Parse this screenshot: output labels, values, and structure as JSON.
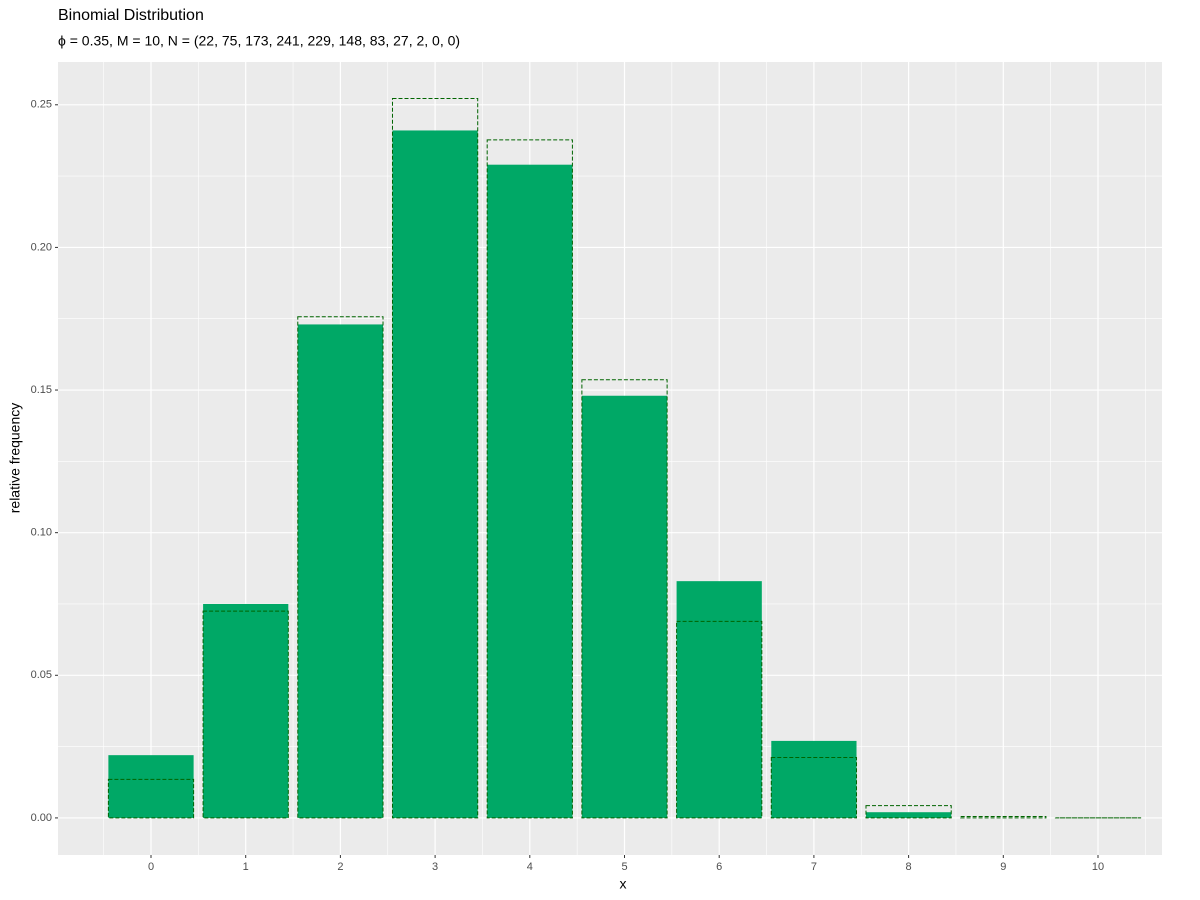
{
  "chart_data": {
    "type": "bar",
    "title": "Binomial Distribution",
    "subtitle": "ϕ = 0.35, M = 10, N = (22, 75, 173, 241, 229, 148, 83, 27, 2, 0, 0)",
    "x_label": "x",
    "y_label": "relative frequency",
    "categories": [
      "0",
      "1",
      "2",
      "3",
      "4",
      "5",
      "6",
      "7",
      "8",
      "9",
      "10"
    ],
    "series": [
      {
        "color": "#00a866",
        "dashed": false,
        "values": [
          0.022,
          0.075,
          0.173,
          0.241,
          0.229,
          0.148,
          0.083,
          0.027,
          0.002,
          0,
          0
        ]
      },
      {
        "color": "#006400",
        "dashed": true,
        "values": [
          0.0135,
          0.0725,
          0.1757,
          0.2522,
          0.2377,
          0.1536,
          0.0689,
          0.0212,
          0.0043,
          0.0005,
          3e-05
        ]
      }
    ],
    "ylim": [
      -0.013,
      0.265
    ],
    "yticks": [
      {
        "value": 0,
        "label": "0.00"
      },
      0.05,
      {
        "value": 0.1,
        "label": "0.10"
      },
      0.15,
      {
        "value": 0.2,
        "label": "0.20"
      },
      0.25
    ],
    "grid": true
  }
}
